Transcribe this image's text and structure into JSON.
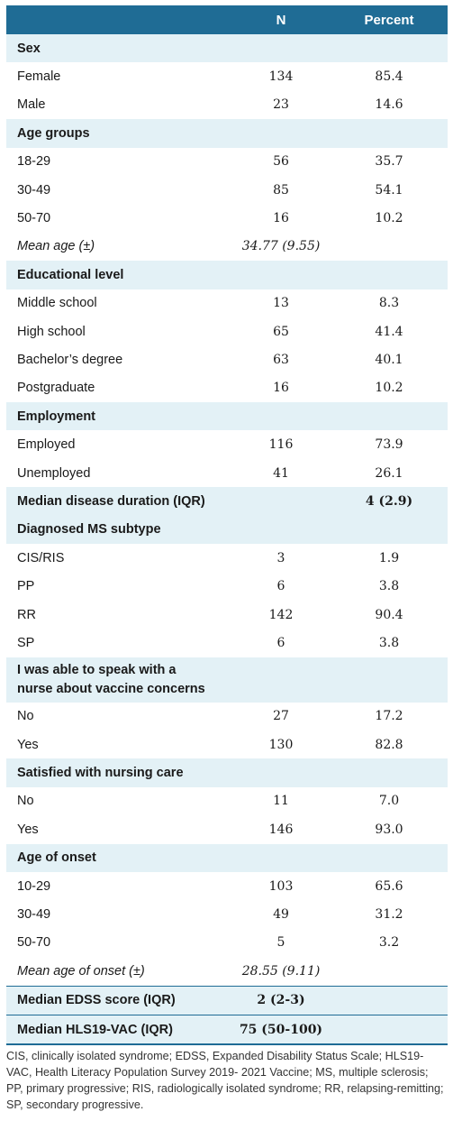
{
  "header": {
    "col1": "",
    "col2": "N",
    "col3": "Percent"
  },
  "rows": [
    {
      "type": "section",
      "label": "Sex",
      "n": "",
      "pct": ""
    },
    {
      "type": "row",
      "label": "Female",
      "n": "134",
      "pct": "85.4"
    },
    {
      "type": "row",
      "label": "Male",
      "n": "23",
      "pct": "14.6"
    },
    {
      "type": "section",
      "label": "Age groups",
      "n": "",
      "pct": ""
    },
    {
      "type": "row",
      "label": "18-29",
      "n": "56",
      "pct": "35.7"
    },
    {
      "type": "row",
      "label": "30-49",
      "n": "85",
      "pct": "54.1"
    },
    {
      "type": "row",
      "label": "50-70",
      "n": "16",
      "pct": "10.2"
    },
    {
      "type": "italic",
      "label": "Mean age (±)",
      "n": "34.77 (9.55)",
      "pct": ""
    },
    {
      "type": "section",
      "label": "Educational level",
      "n": "",
      "pct": ""
    },
    {
      "type": "row",
      "label": "Middle school",
      "n": "13",
      "pct": "8.3"
    },
    {
      "type": "row",
      "label": "High school",
      "n": "65",
      "pct": "41.4"
    },
    {
      "type": "row",
      "label": "Bachelor’s degree",
      "n": "63",
      "pct": "40.1"
    },
    {
      "type": "row",
      "label": "Postgraduate",
      "n": "16",
      "pct": "10.2"
    },
    {
      "type": "section",
      "label": "Employment",
      "n": "",
      "pct": ""
    },
    {
      "type": "row",
      "label": "Employed",
      "n": "116",
      "pct": "73.9"
    },
    {
      "type": "row",
      "label": "Unemployed",
      "n": "41",
      "pct": "26.1"
    },
    {
      "type": "section",
      "label": "Median disease duration (IQR)",
      "n": "",
      "pct": "4 (2.9)"
    },
    {
      "type": "section",
      "label": "Diagnosed MS subtype",
      "n": "",
      "pct": ""
    },
    {
      "type": "row",
      "label": "CIS/RIS",
      "n": "3",
      "pct": "1.9"
    },
    {
      "type": "row",
      "label": "PP",
      "n": "6",
      "pct": "3.8"
    },
    {
      "type": "row",
      "label": "RR",
      "n": "142",
      "pct": "90.4"
    },
    {
      "type": "row",
      "label": "SP",
      "n": "6",
      "pct": "3.8"
    },
    {
      "type": "section2",
      "label": "I was able to speak with a nurse about vaccine concerns",
      "n": "",
      "pct": ""
    },
    {
      "type": "row",
      "label": "No",
      "n": "27",
      "pct": "17.2"
    },
    {
      "type": "row",
      "label": "Yes",
      "n": "130",
      "pct": "82.8"
    },
    {
      "type": "section",
      "label": "Satisfied with nursing care",
      "n": "",
      "pct": ""
    },
    {
      "type": "row",
      "label": "No",
      "n": "11",
      "pct": "7.0"
    },
    {
      "type": "row",
      "label": "Yes",
      "n": "146",
      "pct": "93.0"
    },
    {
      "type": "section",
      "label": "Age of onset",
      "n": "",
      "pct": ""
    },
    {
      "type": "row",
      "label": "10-29",
      "n": "103",
      "pct": "65.6"
    },
    {
      "type": "row",
      "label": "30-49",
      "n": "49",
      "pct": "31.2"
    },
    {
      "type": "row",
      "label": "50-70",
      "n": "5",
      "pct": "3.2"
    },
    {
      "type": "italic",
      "label": "Mean age of onset (±)",
      "n": "28.55 (9.11)",
      "pct": ""
    },
    {
      "type": "section-sep",
      "label": "Median EDSS score (IQR)",
      "n": "2 (2-3)",
      "pct": ""
    },
    {
      "type": "section-sep-last",
      "label": "Median HLS19-VAC (IQR)",
      "n": "75 (50-100)",
      "pct": ""
    }
  ],
  "footnote": "CIS, clinically isolated syndrome; EDSS, Expanded Disability Status Scale; HLS19-VAC, Health Literacy Population Survey 2019- 2021 Vaccine; MS, multiple sclerosis; PP, primary progressive; RIS, radiologically isolated syndrome; RR, relapsing-remitting; SP, secondary progressive.",
  "colors": {
    "header": "#1f6c95",
    "section_bg": "#e3f1f6"
  }
}
